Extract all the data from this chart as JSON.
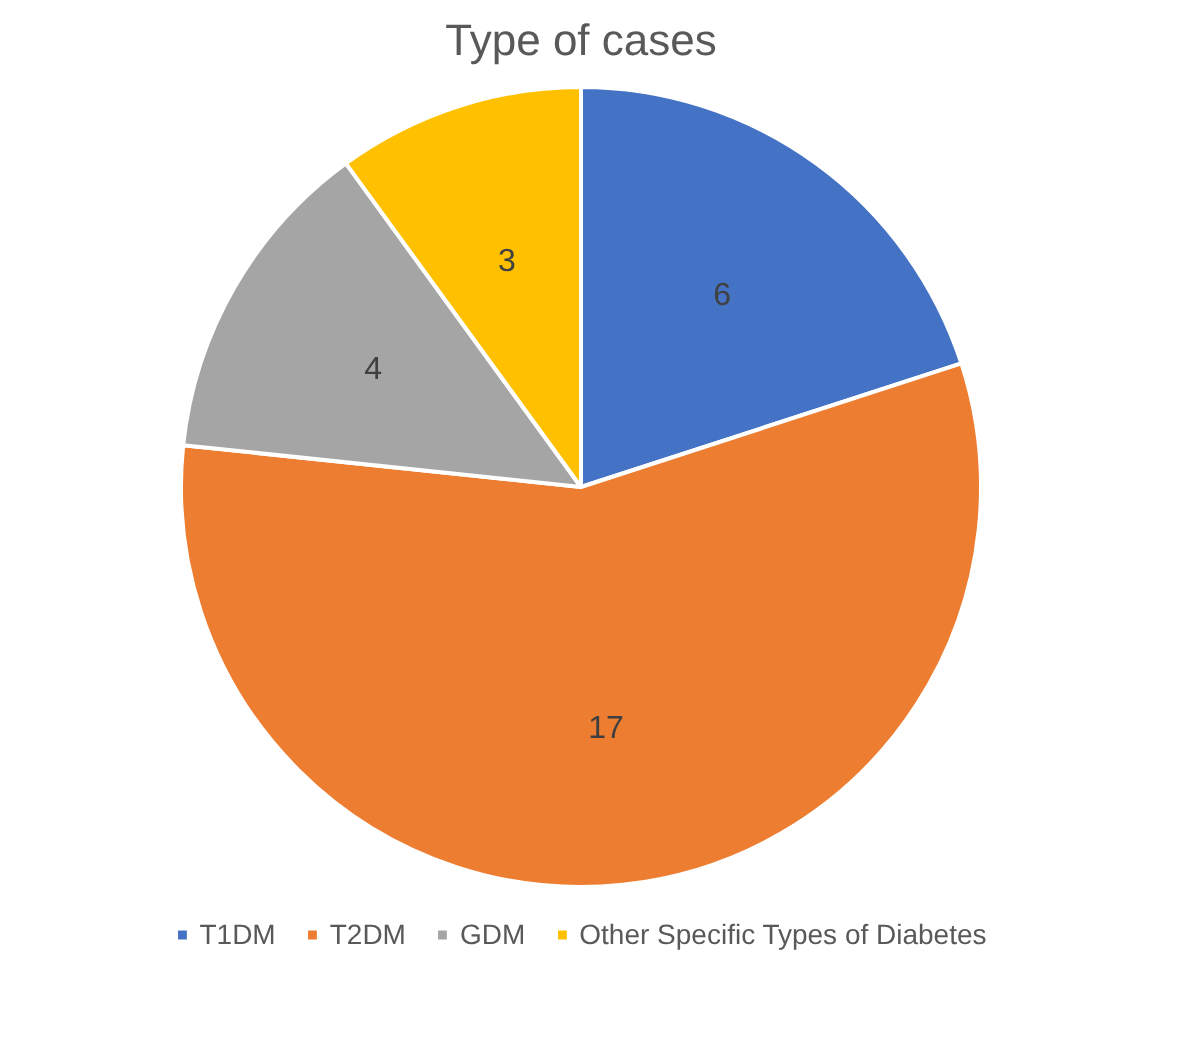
{
  "chart_data": {
    "type": "pie",
    "title": "Type of cases",
    "categories": [
      "T1DM",
      "T2DM",
      "GDM",
      "Other Specific Types of Diabetes"
    ],
    "values": [
      6,
      17,
      4,
      3
    ],
    "colors": [
      "#4472c4",
      "#ed7d31",
      "#a5a5a5",
      "#ffc000"
    ],
    "data_labels": true,
    "legend": "bottom"
  }
}
